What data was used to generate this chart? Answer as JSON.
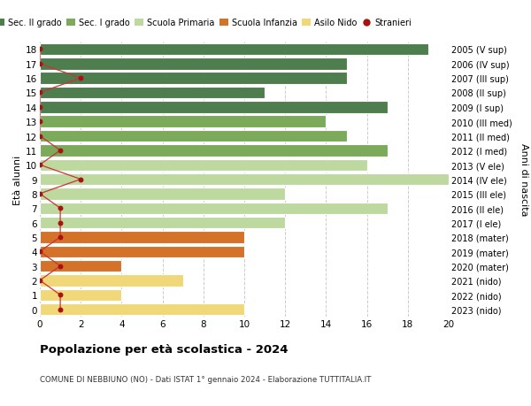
{
  "ages": [
    18,
    17,
    16,
    15,
    14,
    13,
    12,
    11,
    10,
    9,
    8,
    7,
    6,
    5,
    4,
    3,
    2,
    1,
    0
  ],
  "right_labels": [
    "2005 (V sup)",
    "2006 (IV sup)",
    "2007 (III sup)",
    "2008 (II sup)",
    "2009 (I sup)",
    "2010 (III med)",
    "2011 (II med)",
    "2012 (I med)",
    "2013 (V ele)",
    "2014 (IV ele)",
    "2015 (III ele)",
    "2016 (II ele)",
    "2017 (I ele)",
    "2018 (mater)",
    "2019 (mater)",
    "2020 (mater)",
    "2021 (nido)",
    "2022 (nido)",
    "2023 (nido)"
  ],
  "bar_values": [
    19,
    15,
    15,
    11,
    17,
    14,
    15,
    17,
    16,
    20,
    12,
    17,
    12,
    10,
    10,
    4,
    7,
    4,
    10
  ],
  "bar_colors": [
    "#4e7d4e",
    "#4e7d4e",
    "#4e7d4e",
    "#4e7d4e",
    "#4e7d4e",
    "#7aaa5a",
    "#7aaa5a",
    "#7aaa5a",
    "#bdd9a0",
    "#bdd9a0",
    "#bdd9a0",
    "#bdd9a0",
    "#bdd9a0",
    "#d4722a",
    "#d4722a",
    "#d4722a",
    "#f0d878",
    "#f0d878",
    "#f0d878"
  ],
  "stranieri_values": [
    0,
    0,
    2,
    0,
    0,
    0,
    0,
    1,
    0,
    2,
    0,
    1,
    1,
    1,
    0,
    1,
    0,
    1,
    1
  ],
  "legend_labels": [
    "Sec. II grado",
    "Sec. I grado",
    "Scuola Primaria",
    "Scuola Infanzia",
    "Asilo Nido",
    "Stranieri"
  ],
  "legend_colors": [
    "#4e7d4e",
    "#7aaa5a",
    "#bdd9a0",
    "#d4722a",
    "#f0d878",
    "#aa1111"
  ],
  "title": "Popolazione per età scolastica - 2024",
  "subtitle": "COMUNE DI NEBBIUNO (NO) - Dati ISTAT 1° gennaio 2024 - Elaborazione TUTTITALIA.IT",
  "ylabel_left": "Età alunni",
  "ylabel_right": "Anni di nascita",
  "xlim": [
    0,
    20
  ],
  "xticks": [
    0,
    2,
    4,
    6,
    8,
    10,
    12,
    14,
    16,
    18,
    20
  ],
  "bg_color": "#ffffff",
  "bar_edgecolor": "#ffffff",
  "stranieri_color": "#aa1111",
  "stranieri_linecolor": "#cc3333",
  "grid_color": "#cccccc"
}
